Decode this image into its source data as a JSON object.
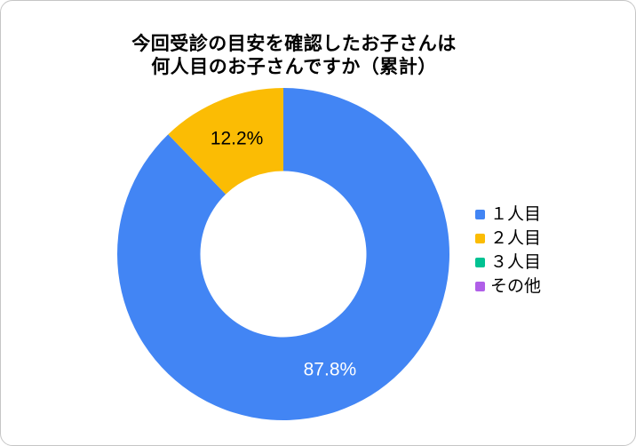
{
  "title": {
    "line1": "今回受診の目安を確認したお子さんは",
    "line2": "何人目のお子さんですか（累計）"
  },
  "chart_data": {
    "type": "pie",
    "subtype": "donut",
    "title": "今回受診の目安を確認したお子さんは何人目のお子さんですか（累計）",
    "categories": [
      "１人目",
      "２人目",
      "３人目",
      "その他"
    ],
    "values": [
      87.8,
      12.2,
      0,
      0
    ],
    "colors": [
      "#4285f4",
      "#fbbc04",
      "#00c292",
      "#b05fe8"
    ],
    "slice_labels": [
      "87.8%",
      "12.2%",
      null,
      null
    ],
    "slice_label_colors": [
      "#ffffff",
      "#000000",
      null,
      null
    ],
    "donut_hole_ratio": 0.5,
    "start_angle_deg": 0,
    "direction": "clockwise",
    "legend_position": "right",
    "unit": "%"
  }
}
